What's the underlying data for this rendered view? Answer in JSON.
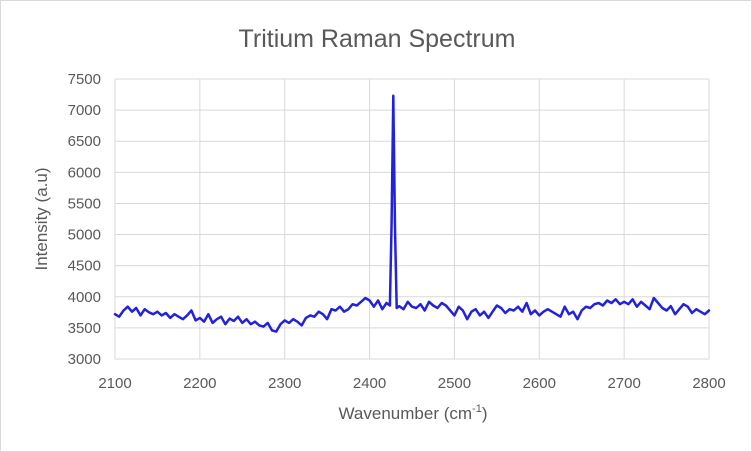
{
  "chart_data": {
    "type": "line",
    "title": "Tritium Raman Spectrum",
    "xlabel": "Wavenumber (cm",
    "xlabel_sup": "-1",
    "xlabel_close": ")",
    "ylabel": "Intensity (a.u)",
    "xlim": [
      2100,
      2800
    ],
    "ylim": [
      3000,
      7500
    ],
    "x_ticks": [
      2100,
      2200,
      2300,
      2400,
      2500,
      2600,
      2700,
      2800
    ],
    "y_ticks": [
      3000,
      3500,
      4000,
      4500,
      5000,
      5500,
      6000,
      6500,
      7000,
      7500
    ],
    "grid": true,
    "legend": "none",
    "series": [
      {
        "color": "#2222dd",
        "x": [
          2100,
          2105,
          2110,
          2115,
          2120,
          2125,
          2130,
          2135,
          2140,
          2145,
          2150,
          2155,
          2160,
          2165,
          2170,
          2175,
          2180,
          2185,
          2190,
          2195,
          2200,
          2205,
          2210,
          2215,
          2220,
          2225,
          2230,
          2235,
          2240,
          2245,
          2250,
          2255,
          2260,
          2265,
          2270,
          2275,
          2280,
          2285,
          2290,
          2295,
          2300,
          2305,
          2310,
          2315,
          2320,
          2325,
          2330,
          2335,
          2340,
          2345,
          2350,
          2355,
          2360,
          2365,
          2370,
          2375,
          2380,
          2385,
          2390,
          2395,
          2400,
          2405,
          2410,
          2415,
          2420,
          2424,
          2426,
          2428,
          2430,
          2432,
          2435,
          2440,
          2445,
          2450,
          2455,
          2460,
          2465,
          2470,
          2475,
          2480,
          2485,
          2490,
          2495,
          2500,
          2505,
          2510,
          2515,
          2520,
          2525,
          2530,
          2535,
          2540,
          2545,
          2550,
          2555,
          2560,
          2565,
          2570,
          2575,
          2580,
          2585,
          2590,
          2595,
          2600,
          2605,
          2610,
          2615,
          2620,
          2625,
          2630,
          2635,
          2640,
          2645,
          2650,
          2655,
          2660,
          2665,
          2670,
          2675,
          2680,
          2685,
          2690,
          2695,
          2700,
          2705,
          2710,
          2715,
          2720,
          2725,
          2730,
          2735,
          2740,
          2745,
          2750,
          2755,
          2760,
          2765,
          2770,
          2775,
          2780,
          2785,
          2790,
          2795,
          2800
        ],
        "y": [
          3720,
          3680,
          3780,
          3840,
          3760,
          3820,
          3700,
          3800,
          3750,
          3720,
          3760,
          3700,
          3740,
          3660,
          3720,
          3680,
          3640,
          3700,
          3780,
          3620,
          3660,
          3600,
          3720,
          3580,
          3640,
          3680,
          3560,
          3650,
          3610,
          3680,
          3580,
          3640,
          3560,
          3600,
          3540,
          3520,
          3580,
          3460,
          3440,
          3560,
          3620,
          3580,
          3640,
          3600,
          3540,
          3660,
          3700,
          3680,
          3760,
          3720,
          3640,
          3800,
          3780,
          3840,
          3760,
          3800,
          3880,
          3860,
          3920,
          3980,
          3940,
          3840,
          3940,
          3800,
          3900,
          3860,
          5200,
          7230,
          5100,
          3820,
          3850,
          3800,
          3920,
          3840,
          3820,
          3880,
          3780,
          3920,
          3860,
          3820,
          3900,
          3860,
          3780,
          3700,
          3840,
          3780,
          3640,
          3760,
          3800,
          3700,
          3760,
          3660,
          3760,
          3860,
          3820,
          3740,
          3800,
          3780,
          3840,
          3760,
          3900,
          3720,
          3780,
          3700,
          3760,
          3800,
          3760,
          3720,
          3680,
          3840,
          3720,
          3760,
          3640,
          3780,
          3840,
          3820,
          3880,
          3900,
          3860,
          3940,
          3900,
          3960,
          3880,
          3920,
          3880,
          3960,
          3840,
          3920,
          3860,
          3800,
          3980,
          3900,
          3820,
          3780,
          3850,
          3720,
          3800,
          3880,
          3840,
          3740,
          3800,
          3760,
          3720,
          3780
        ]
      }
    ]
  }
}
